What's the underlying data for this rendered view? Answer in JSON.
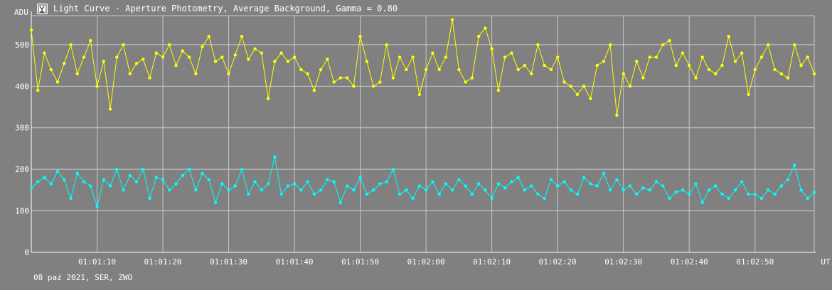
{
  "window": {
    "title": "Light Curve - Aperture Photometry, Average Background, Gamma = 0.80",
    "icon": "telescope-app-icon"
  },
  "footer": {
    "info": "08 paź 2021, SER, ZWO"
  },
  "chart_data": {
    "type": "line",
    "title": "Light Curve - Aperture Photometry, Average Background, Gamma = 0.80",
    "ylabel": "ADU",
    "xlabel": "UT",
    "ylim": [
      0,
      570
    ],
    "xlim": [
      0,
      119
    ],
    "y_ticks": [
      0,
      100,
      200,
      300,
      400,
      500
    ],
    "x_ticks": [
      {
        "t": 10,
        "label": "01:01:10"
      },
      {
        "t": 20,
        "label": "01:01:20"
      },
      {
        "t": 30,
        "label": "01:01:30"
      },
      {
        "t": 40,
        "label": "01:01:40"
      },
      {
        "t": 50,
        "label": "01:01:50"
      },
      {
        "t": 60,
        "label": "01:02:00"
      },
      {
        "t": 70,
        "label": "01:02:10"
      },
      {
        "t": 80,
        "label": "01:02:20"
      },
      {
        "t": 90,
        "label": "01:02:30"
      },
      {
        "t": 100,
        "label": "01:02:40"
      },
      {
        "t": 110,
        "label": "01:02:50"
      }
    ],
    "grid": true,
    "series": [
      {
        "name": "",
        "color": "#ffff00",
        "values": [
          535,
          390,
          480,
          440,
          410,
          455,
          500,
          430,
          470,
          510,
          400,
          460,
          345,
          470,
          500,
          430,
          455,
          465,
          420,
          480,
          470,
          500,
          450,
          485,
          470,
          430,
          495,
          520,
          460,
          470,
          430,
          475,
          520,
          465,
          490,
          480,
          370,
          460,
          480,
          460,
          470,
          440,
          430,
          390,
          440,
          465,
          410,
          420,
          420,
          400,
          520,
          460,
          400,
          410,
          500,
          420,
          470,
          440,
          470,
          380,
          440,
          480,
          440,
          470,
          560,
          440,
          410,
          420,
          520,
          540,
          490,
          390,
          470,
          480,
          440,
          450,
          430,
          500,
          450,
          440,
          470,
          410,
          400,
          380,
          400,
          370,
          450,
          460,
          500,
          330,
          430,
          400,
          460,
          420,
          470,
          470,
          500,
          510,
          450,
          480,
          450,
          420,
          470,
          440,
          430,
          450,
          520,
          460,
          480,
          380,
          440,
          470,
          500,
          440,
          430,
          420,
          500,
          450,
          470,
          430
        ]
      },
      {
        "name": "",
        "color": "#00ffff",
        "values": [
          155,
          170,
          180,
          165,
          195,
          175,
          130,
          190,
          170,
          160,
          110,
          175,
          160,
          200,
          150,
          185,
          170,
          200,
          130,
          180,
          175,
          150,
          165,
          185,
          200,
          150,
          190,
          175,
          120,
          165,
          150,
          160,
          200,
          140,
          170,
          150,
          165,
          230,
          140,
          160,
          165,
          150,
          170,
          140,
          150,
          175,
          170,
          120,
          160,
          150,
          180,
          140,
          150,
          165,
          170,
          200,
          140,
          150,
          130,
          160,
          150,
          170,
          140,
          165,
          150,
          175,
          160,
          140,
          165,
          150,
          130,
          165,
          155,
          170,
          180,
          150,
          160,
          140,
          130,
          175,
          160,
          170,
          150,
          140,
          180,
          165,
          160,
          190,
          150,
          175,
          150,
          160,
          140,
          155,
          150,
          170,
          160,
          130,
          145,
          150,
          140,
          165,
          120,
          150,
          160,
          140,
          130,
          150,
          170,
          140,
          140,
          130,
          150,
          140,
          160,
          175,
          210,
          150,
          130,
          145
        ]
      }
    ]
  }
}
